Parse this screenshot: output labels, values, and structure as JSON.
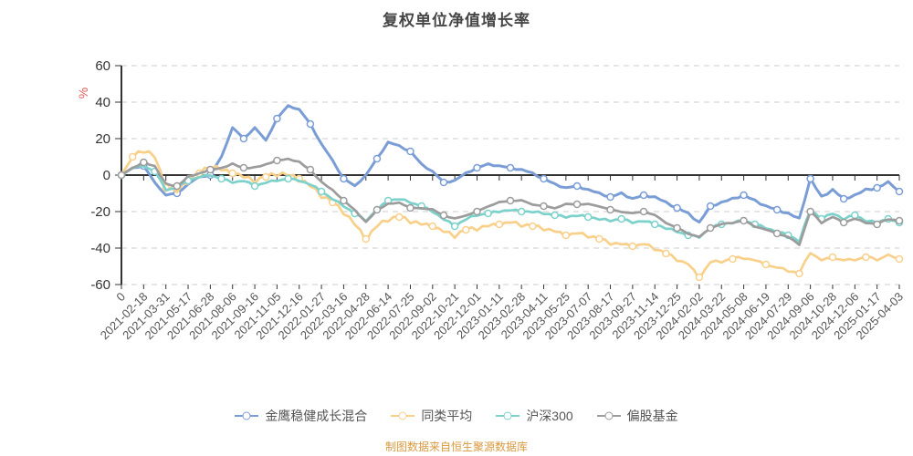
{
  "header": {
    "title": "复权单位净值增长率"
  },
  "footer": {
    "text": "制图数据来自恒生聚源数据库",
    "color": "#D99A3E"
  },
  "chart_data": {
    "type": "line",
    "title": "复权单位净值增长率",
    "xlabel": "",
    "ylabel": "%",
    "ylabel_color": "#E36060",
    "ylim": [
      -60,
      60
    ],
    "y_ticks": [
      60,
      40,
      20,
      0,
      -20,
      -40,
      -60
    ],
    "grid": "dashed-horizontal",
    "legend_position": "bottom",
    "axis_color": "#333333",
    "grid_color": "#CCCCCC",
    "x_label_color": "#555555",
    "y_label_color": "#333333",
    "samples_per_interval": 2,
    "x_labels": [
      "0",
      "2021-02-18",
      "2021-03-31",
      "2021-05-17",
      "2021-06-28",
      "2021-08-06",
      "2021-09-16",
      "2021-11-05",
      "2021-12-16",
      "2022-01-27",
      "2022-03-16",
      "2022-04-28",
      "2022-06-14",
      "2022-07-25",
      "2022-09-02",
      "2022-10-21",
      "2022-12-01",
      "2023-01-11",
      "2023-02-28",
      "2023-04-11",
      "2023-05-25",
      "2023-07-07",
      "2023-08-17",
      "2023-09-27",
      "2023-11-14",
      "2023-12-25",
      "2024-02-02",
      "2024-03-22",
      "2024-05-08",
      "2024-06-19",
      "2024-07-29",
      "2024-09-06",
      "2024-10-28",
      "2024-12-06",
      "2025-01-17",
      "2025-04-03"
    ],
    "series": [
      {
        "name": "金鹰稳健成长混合",
        "color": "#7B9DD6",
        "values": [
          0,
          4,
          5,
          -4,
          -11,
          -10,
          -5,
          -1,
          0,
          10,
          26,
          20,
          26,
          19,
          31,
          38,
          36,
          28,
          17,
          8,
          -2,
          -6,
          0,
          9,
          18,
          16,
          13,
          6,
          2,
          -4,
          -3,
          1,
          4,
          6,
          5,
          4,
          3,
          1,
          -2,
          -5,
          -7,
          -6,
          -8,
          -10,
          -12,
          -10,
          -13,
          -11,
          -12,
          -15,
          -18,
          -21,
          -26,
          -17,
          -15,
          -13,
          -11,
          -14,
          -17,
          -19,
          -21,
          -24,
          -2,
          -12,
          -8,
          -13,
          -11,
          -8,
          -7,
          -4,
          -9
        ]
      },
      {
        "name": "同类平均",
        "color": "#F9D08A",
        "values": [
          0,
          10,
          14,
          10,
          -7,
          -9,
          -3,
          1,
          5,
          3,
          1,
          -1,
          -3,
          -1,
          1,
          0,
          -2,
          -6,
          -11,
          -15,
          -20,
          -27,
          -35,
          -28,
          -24,
          -23,
          -25,
          -27,
          -28,
          -31,
          -33,
          -30,
          -29,
          -28,
          -27,
          -26,
          -27,
          -28,
          -29,
          -31,
          -33,
          -32,
          -33,
          -35,
          -37,
          -38,
          -39,
          -38,
          -40,
          -43,
          -46,
          -49,
          -56,
          -48,
          -47,
          -46,
          -45,
          -47,
          -49,
          -51,
          -52,
          -54,
          -42,
          -47,
          -45,
          -47,
          -46,
          -45,
          -46,
          -44,
          -46
        ]
      },
      {
        "name": "沪深300",
        "color": "#7CD1CB",
        "values": [
          0,
          4,
          5,
          2,
          -8,
          -7,
          -3,
          -1,
          0,
          -2,
          -4,
          -3,
          -6,
          -4,
          -3,
          -2,
          -3,
          -5,
          -9,
          -13,
          -17,
          -21,
          -25,
          -19,
          -14,
          -13,
          -15,
          -17,
          -20,
          -24,
          -28,
          -24,
          -22,
          -21,
          -20,
          -19,
          -20,
          -20,
          -21,
          -22,
          -23,
          -22,
          -23,
          -24,
          -25,
          -24,
          -26,
          -25,
          -27,
          -29,
          -31,
          -33,
          -34,
          -29,
          -27,
          -26,
          -25,
          -27,
          -29,
          -31,
          -33,
          -36,
          -19,
          -24,
          -21,
          -24,
          -22,
          -25,
          -26,
          -24,
          -26
        ]
      },
      {
        "name": "偏股基金",
        "color": "#9C9C9C",
        "values": [
          0,
          4,
          7,
          5,
          -5,
          -6,
          -1,
          1,
          3,
          4,
          6,
          4,
          4,
          6,
          8,
          9,
          7,
          3,
          -4,
          -8,
          -14,
          -19,
          -26,
          -19,
          -16,
          -15,
          -18,
          -18,
          -19,
          -22,
          -24,
          -22,
          -20,
          -17,
          -15,
          -14,
          -14,
          -16,
          -17,
          -18,
          -16,
          -16,
          -16,
          -17,
          -19,
          -20,
          -21,
          -20,
          -22,
          -26,
          -29,
          -32,
          -34,
          -29,
          -27,
          -26,
          -25,
          -28,
          -30,
          -32,
          -34,
          -38,
          -20,
          -26,
          -23,
          -26,
          -24,
          -26,
          -27,
          -24,
          -25
        ]
      }
    ]
  }
}
